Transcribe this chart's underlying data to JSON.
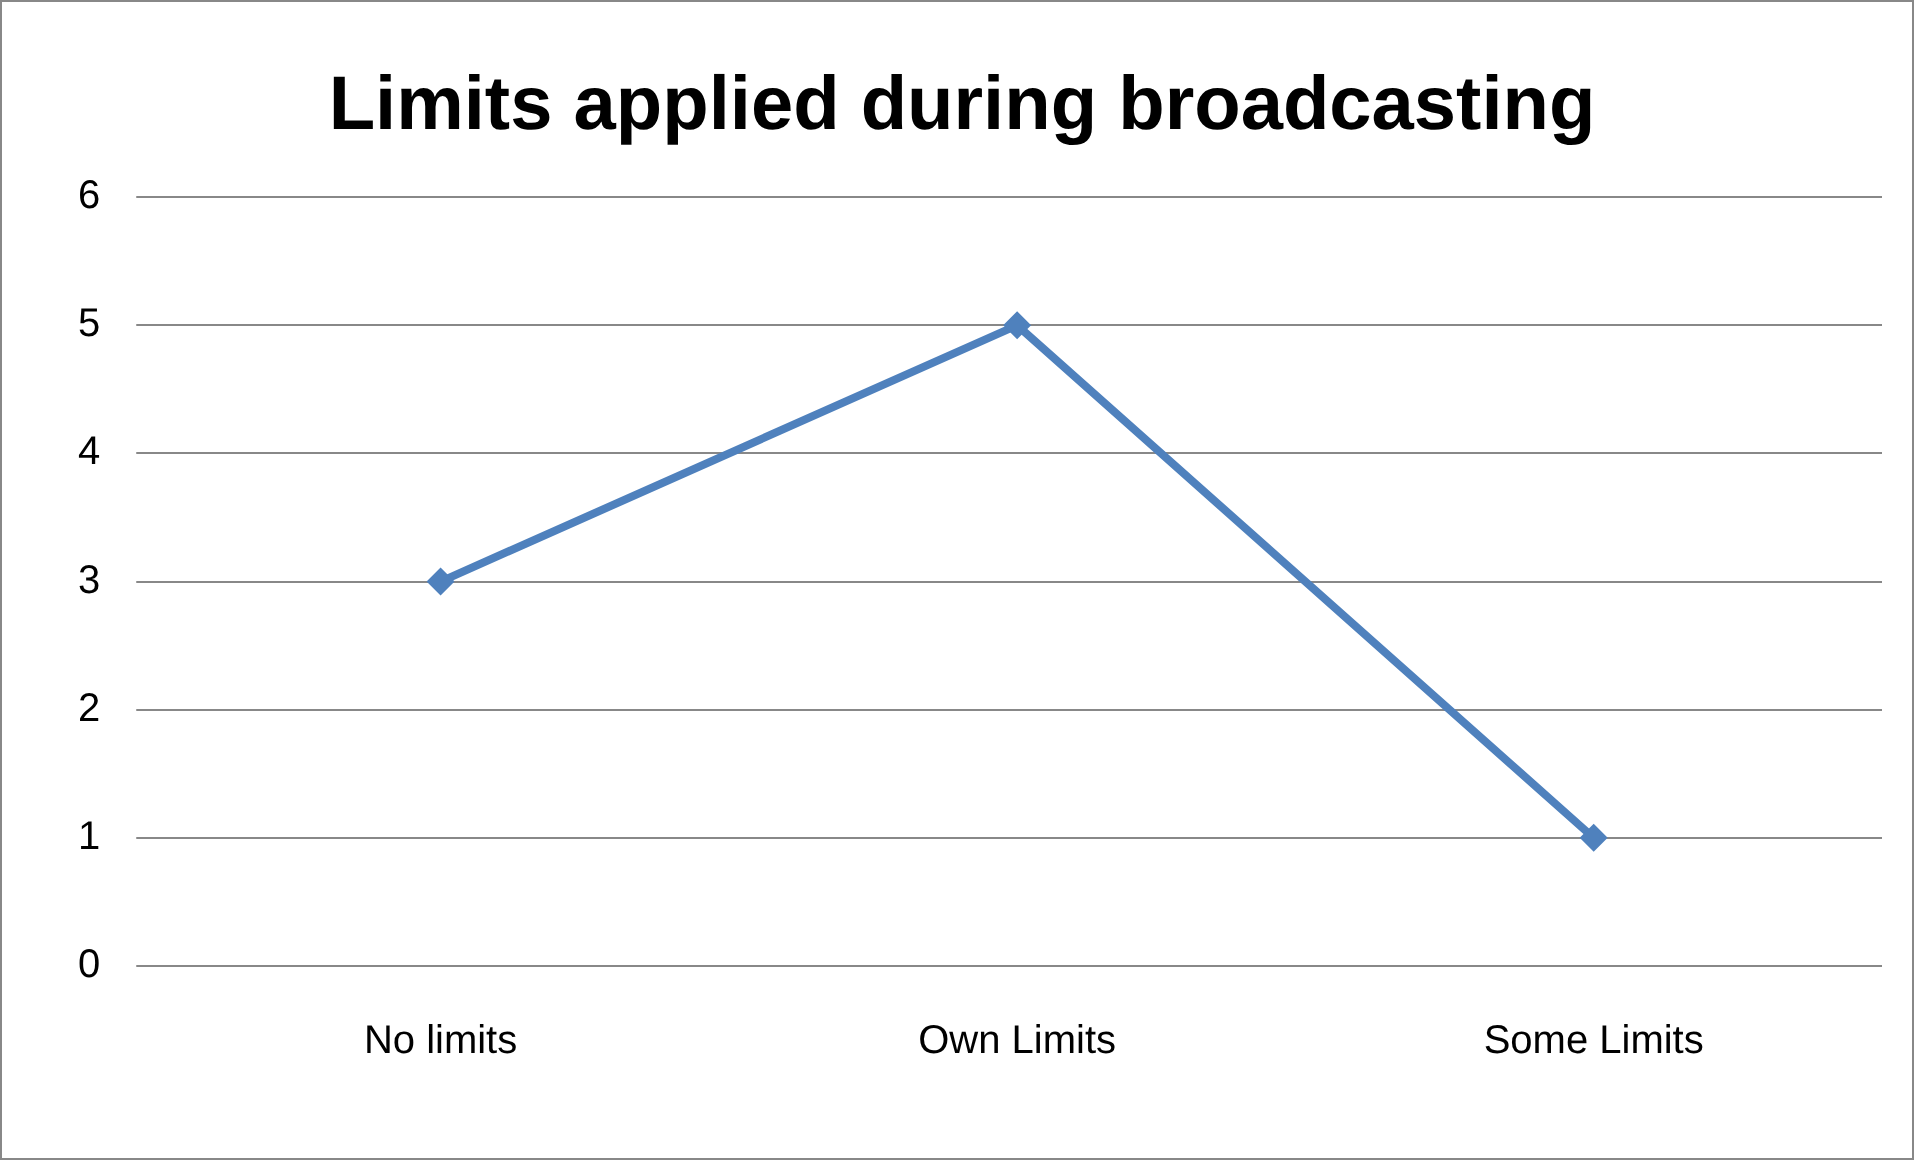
{
  "chart_data": {
    "type": "line",
    "title": "Limits applied during broadcasting",
    "categories": [
      "No limits",
      "Own Limits",
      "Some Limits"
    ],
    "series": [
      {
        "color": "#4f81bd",
        "values": [
          3,
          5,
          1
        ]
      }
    ],
    "ylim": [
      0,
      6
    ],
    "yticks": [
      0,
      1,
      2,
      3,
      4,
      5,
      6
    ],
    "grid": "y",
    "marker": "diamond",
    "line_style": "solid"
  }
}
